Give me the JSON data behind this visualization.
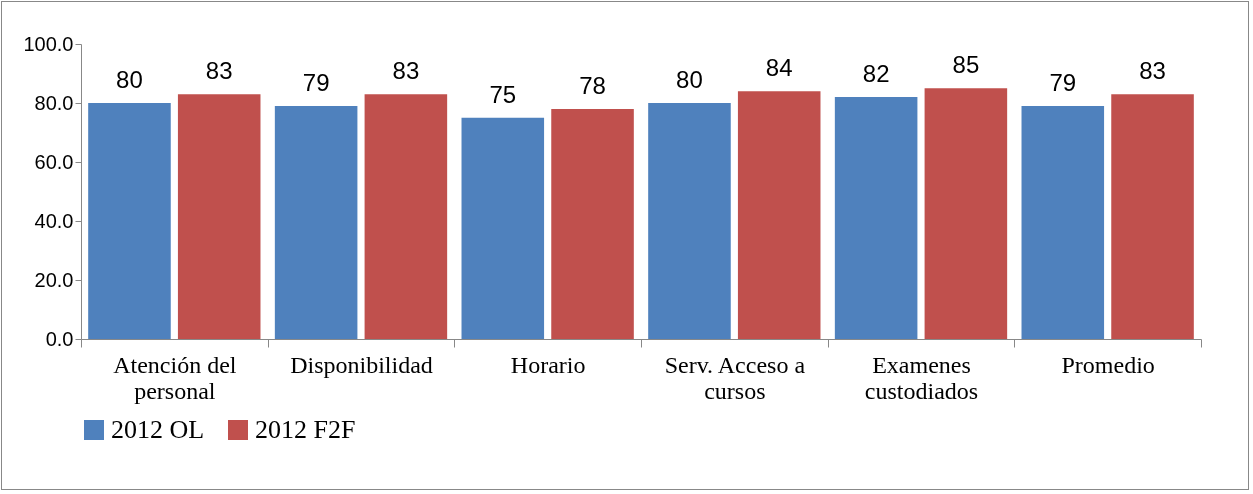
{
  "chart_data": {
    "type": "bar",
    "categories": [
      "Atención del personal",
      "Disponibilidad",
      "Horario",
      "Serv. Acceso a cursos",
      "Examenes custodiados",
      "Promedio"
    ],
    "series": [
      {
        "name": "2012 OL",
        "color": "#4f81bd",
        "values": [
          80,
          79,
          75,
          80,
          82,
          79
        ]
      },
      {
        "name": "2012 F2F",
        "color": "#c0504d",
        "values": [
          83,
          83,
          78,
          84,
          85,
          83
        ]
      }
    ],
    "ylim": [
      0,
      100
    ],
    "yticks": [
      {
        "value": 0,
        "label": "0.0"
      },
      {
        "value": 20,
        "label": "20.0"
      },
      {
        "value": 40,
        "label": "40.0"
      },
      {
        "value": 60,
        "label": "60.0"
      },
      {
        "value": 80,
        "label": "80.0"
      },
      {
        "value": 100,
        "label": "100.0"
      }
    ],
    "data_labels": true,
    "grid": false,
    "legend": "bottom"
  }
}
